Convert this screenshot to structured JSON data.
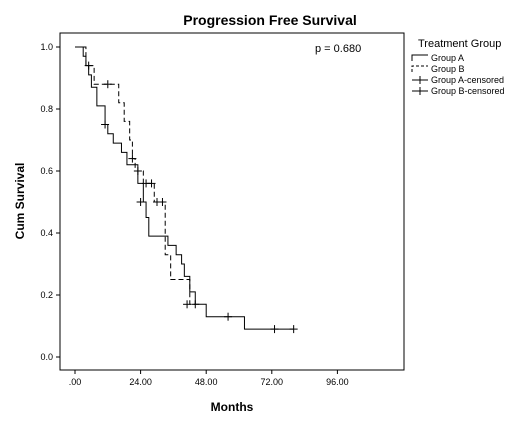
{
  "chart_data": {
    "type": "line",
    "title": "Progression Free Survival",
    "xlabel": "Months",
    "ylabel": "Cum Survival",
    "xlim": [
      0,
      108
    ],
    "ylim": [
      0,
      1.05
    ],
    "x_ticks": [
      0,
      24,
      48,
      72,
      96
    ],
    "x_tick_labels": [
      ".00",
      "24.00",
      "48.00",
      "72.00",
      "96.00"
    ],
    "y_ticks": [
      0,
      0.2,
      0.4,
      0.6,
      0.8,
      1.0
    ],
    "y_tick_labels": [
      "0.0",
      "0.2",
      "0.4",
      "0.6",
      "0.8",
      "1.0"
    ],
    "grid": false,
    "legend_position": "right",
    "annotation": "p = 0.680",
    "legend": {
      "title": "Treatment Group",
      "entries": [
        "Group A",
        "Group B",
        "Group A-censored",
        "Group B-censored"
      ]
    },
    "series": [
      {
        "name": "Group A",
        "line_style": "solid",
        "steps": [
          [
            0,
            1.0
          ],
          [
            3,
            0.97
          ],
          [
            4,
            0.94
          ],
          [
            5,
            0.91
          ],
          [
            6,
            0.87
          ],
          [
            8,
            0.81
          ],
          [
            11,
            0.75
          ],
          [
            12,
            0.72
          ],
          [
            14,
            0.69
          ],
          [
            17,
            0.66
          ],
          [
            19,
            0.62
          ],
          [
            23,
            0.56
          ],
          [
            25,
            0.5
          ],
          [
            26,
            0.45
          ],
          [
            27,
            0.39
          ],
          [
            34,
            0.36
          ],
          [
            37,
            0.33
          ],
          [
            39,
            0.3
          ],
          [
            40,
            0.26
          ],
          [
            42,
            0.21
          ],
          [
            44,
            0.17
          ],
          [
            48,
            0.13
          ],
          [
            62,
            0.09
          ],
          [
            80,
            0.09
          ]
        ],
        "censored": [
          [
            5,
            0.94
          ],
          [
            11,
            0.75
          ],
          [
            24,
            0.5
          ],
          [
            44,
            0.17
          ],
          [
            56,
            0.13
          ],
          [
            73,
            0.09
          ],
          [
            80,
            0.09
          ]
        ]
      },
      {
        "name": "Group B",
        "line_style": "dashed",
        "steps": [
          [
            0,
            1.0
          ],
          [
            4,
            0.94
          ],
          [
            7,
            0.88
          ],
          [
            15,
            0.88
          ],
          [
            16,
            0.82
          ],
          [
            18,
            0.76
          ],
          [
            20,
            0.7
          ],
          [
            21,
            0.64
          ],
          [
            22,
            0.6
          ],
          [
            25,
            0.56
          ],
          [
            29,
            0.5
          ],
          [
            33,
            0.33
          ],
          [
            35,
            0.25
          ],
          [
            40,
            0.25
          ],
          [
            42,
            0.17
          ],
          [
            44,
            0.17
          ]
        ],
        "censored": [
          [
            12,
            0.88
          ],
          [
            21,
            0.64
          ],
          [
            23,
            0.6
          ],
          [
            26,
            0.56
          ],
          [
            28,
            0.56
          ],
          [
            30,
            0.5
          ],
          [
            32,
            0.5
          ],
          [
            41,
            0.17
          ]
        ]
      }
    ]
  }
}
